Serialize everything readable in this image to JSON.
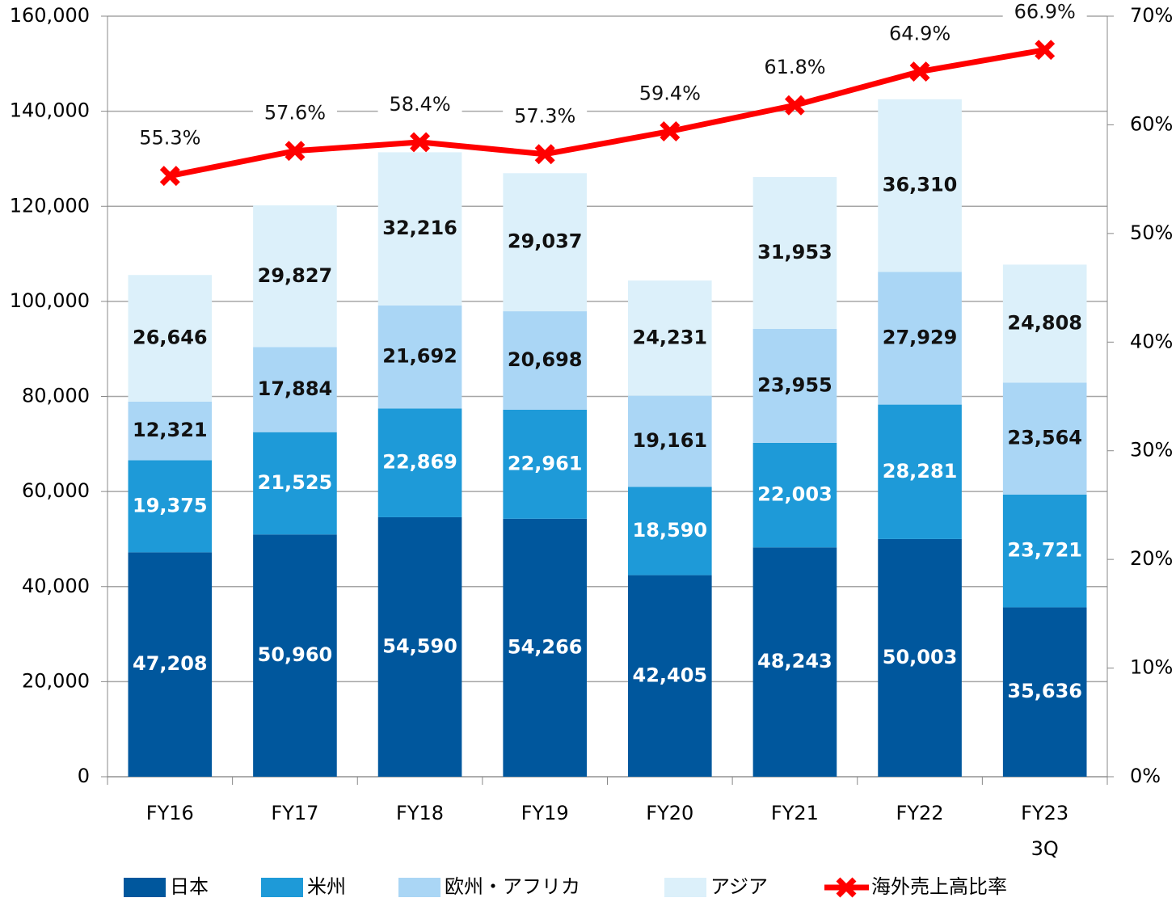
{
  "chart_data": {
    "type": "bar",
    "stacked": true,
    "categories": [
      "FY16",
      "FY17",
      "FY18",
      "FY19",
      "FY20",
      "FY21",
      "FY22",
      "FY23\n3Q"
    ],
    "series": [
      {
        "name": "日本",
        "color": "#00579d",
        "label_color": "#ffffff",
        "values": [
          47208,
          50960,
          54590,
          54266,
          42405,
          48243,
          50003,
          35636
        ],
        "value_labels": [
          "47,208",
          "50,960",
          "54,590",
          "54,266",
          "42,405",
          "48,243",
          "50,003",
          "35,636"
        ]
      },
      {
        "name": "米州",
        "color": "#1e9ad8",
        "label_color": "#ffffff",
        "values": [
          19375,
          21525,
          22869,
          22961,
          18590,
          22003,
          28281,
          23721
        ],
        "value_labels": [
          "19,375",
          "21,525",
          "22,869",
          "22,961",
          "18,590",
          "22,003",
          "28,281",
          "23,721"
        ]
      },
      {
        "name": "欧州・アフリカ",
        "color": "#aad6f5",
        "label_color": "#111111",
        "values": [
          12321,
          17884,
          21692,
          20698,
          19161,
          23955,
          27929,
          23564
        ],
        "value_labels": [
          "12,321",
          "17,884",
          "21,692",
          "20,698",
          "19,161",
          "23,955",
          "27,929",
          "23,564"
        ]
      },
      {
        "name": "アジア",
        "color": "#dcf0fa",
        "label_color": "#111111",
        "values": [
          26646,
          29827,
          32216,
          29037,
          24231,
          31953,
          36310,
          24808
        ],
        "value_labels": [
          "26,646",
          "29,827",
          "32,216",
          "29,037",
          "24,231",
          "31,953",
          "36,310",
          "24,808"
        ]
      },
      {
        "name": "海外売上高比率",
        "type": "line",
        "axis": "y2",
        "color": "#ff0000",
        "values": [
          55.3,
          57.6,
          58.4,
          57.3,
          59.4,
          61.8,
          64.9,
          66.9
        ],
        "value_labels": [
          "55.3%",
          "57.6%",
          "58.4%",
          "57.3%",
          "59.4%",
          "61.8%",
          "64.9%",
          "66.9%"
        ]
      }
    ],
    "ylim": [
      0,
      160000
    ],
    "yticks": [
      0,
      {
        "value": 20000,
        "label": "20,000"
      },
      {
        "value": 40000,
        "label": "40,000"
      },
      {
        "value": 60000,
        "label": "60,000"
      },
      {
        "value": 80000,
        "label": "80,000"
      },
      {
        "value": 100000,
        "label": "100,000"
      },
      {
        "value": 120000,
        "label": "120,000"
      },
      {
        "value": 140000,
        "label": "140,000"
      },
      {
        "value": 160000,
        "label": "160,000"
      }
    ],
    "y2lim": [
      0,
      70
    ],
    "y2ticks": [
      {
        "value": 0,
        "label": "0%"
      },
      {
        "value": 10,
        "label": "10%"
      },
      {
        "value": 20,
        "label": "20%"
      },
      {
        "value": 30,
        "label": "30%"
      },
      {
        "value": 40,
        "label": "40%"
      },
      {
        "value": 50,
        "label": "50%"
      },
      {
        "value": 60,
        "label": "60%"
      },
      {
        "value": 70,
        "label": "70%"
      }
    ],
    "grid": true,
    "legend": "bottom"
  }
}
